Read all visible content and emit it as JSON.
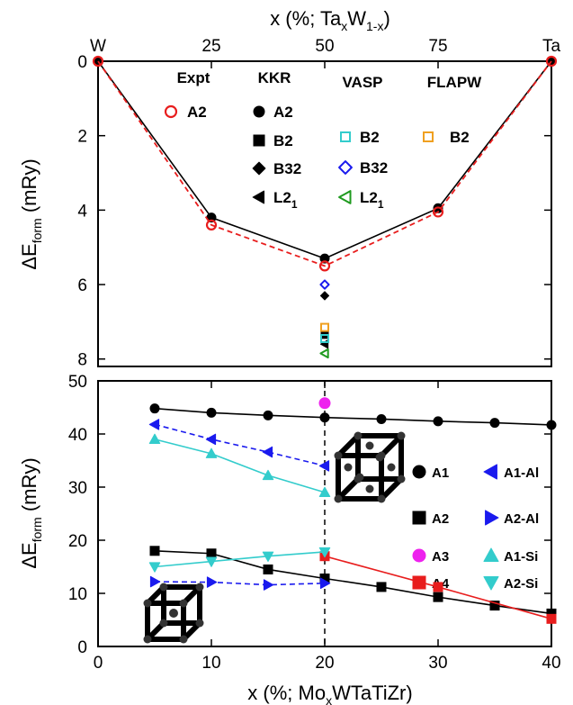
{
  "colors": {
    "black": "#000000",
    "red": "#e81d1d",
    "cyan": "#33cccc",
    "blue": "#1a1aee",
    "green": "#1f9a1f",
    "orange": "#f0a020",
    "magenta": "#ee22ee"
  },
  "chart_data": [
    {
      "type": "line",
      "top_xlabel": "x (%; Ta",
      "top_xlabel_sub": "x",
      "top_xlabel_mid": "W",
      "top_xlabel_sub2": "1-x",
      "top_xlabel_end": ")",
      "ylabel_prefix": "ΔE",
      "ylabel_sub": "form",
      "ylabel_suffix": " (mRy)",
      "xlim": [
        0,
        100
      ],
      "ylim": [
        0,
        8.2
      ],
      "y_inverted": true,
      "x_ticks": [
        {
          "value": 0,
          "label": "W"
        },
        {
          "value": 25,
          "label": "25"
        },
        {
          "value": 50,
          "label": "50"
        },
        {
          "value": 75,
          "label": "75"
        },
        {
          "value": 100,
          "label": "Ta"
        }
      ],
      "y_ticks": [
        0,
        2,
        4,
        6,
        8
      ],
      "legend_headers": [
        "Expt",
        "KKR",
        "VASP",
        "FLAPW"
      ],
      "series": [
        {
          "name": "A2",
          "method": "KKR",
          "marker": "circle",
          "filled": true,
          "color": "#000000",
          "line": "solid",
          "x": [
            0,
            25,
            50,
            75,
            100
          ],
          "y": [
            0,
            4.2,
            5.3,
            3.95,
            0
          ]
        },
        {
          "name": "A2",
          "method": "Expt",
          "marker": "circle",
          "filled": false,
          "color": "#e81d1d",
          "line": "dashed",
          "x": [
            0,
            25,
            50,
            75,
            100
          ],
          "y": [
            0,
            4.4,
            5.5,
            4.05,
            0
          ]
        },
        {
          "name": "B2",
          "method": "KKR",
          "marker": "square",
          "filled": true,
          "color": "#000000",
          "line": "none",
          "x": [
            50
          ],
          "y": [
            7.35
          ]
        },
        {
          "name": "B32",
          "method": "KKR",
          "marker": "diamond",
          "filled": true,
          "color": "#000000",
          "line": "none",
          "x": [
            50
          ],
          "y": [
            6.3
          ]
        },
        {
          "name": "L2",
          "name_sub": "1",
          "method": "KKR",
          "marker": "triangle-left",
          "filled": true,
          "color": "#000000",
          "line": "none",
          "x": [
            50
          ],
          "y": [
            7.6
          ]
        },
        {
          "name": "B2",
          "method": "VASP",
          "marker": "square",
          "filled": false,
          "color": "#33cccc",
          "line": "none",
          "x": [
            50
          ],
          "y": [
            7.45
          ]
        },
        {
          "name": "B32",
          "method": "VASP",
          "marker": "diamond",
          "filled": false,
          "color": "#1a1aee",
          "line": "none",
          "x": [
            50
          ],
          "y": [
            6.0
          ]
        },
        {
          "name": "L2",
          "name_sub": "1",
          "method": "VASP",
          "marker": "triangle-left",
          "filled": false,
          "color": "#1f9a1f",
          "line": "none",
          "x": [
            50
          ],
          "y": [
            7.85
          ]
        },
        {
          "name": "B2",
          "method": "FLAPW",
          "marker": "square",
          "filled": false,
          "color": "#f0a020",
          "line": "none",
          "x": [
            50
          ],
          "y": [
            7.15
          ]
        }
      ]
    },
    {
      "type": "line",
      "xlabel_prefix": "x (%; Mo",
      "xlabel_sub": "x",
      "xlabel_suffix": "WTaTiZr)",
      "ylabel_prefix": "ΔE",
      "ylabel_sub": "form",
      "ylabel_suffix": " (mRy)",
      "xlim": [
        0,
        40
      ],
      "ylim": [
        0,
        50
      ],
      "x_ticks": [
        0,
        10,
        20,
        30,
        40
      ],
      "y_ticks": [
        0,
        10,
        20,
        30,
        40,
        50
      ],
      "vline_x": 20,
      "series": [
        {
          "name": "A1",
          "marker": "circle",
          "filled": true,
          "color": "#000000",
          "line": "solid",
          "x": [
            5,
            10,
            15,
            20,
            25,
            30,
            35,
            40
          ],
          "y": [
            44.8,
            44.0,
            43.5,
            43.1,
            42.8,
            42.4,
            42.1,
            41.7
          ]
        },
        {
          "name": "A2",
          "marker": "square",
          "filled": true,
          "color": "#000000",
          "line": "solid",
          "x": [
            5,
            10,
            15,
            20,
            25,
            30,
            35,
            40
          ],
          "y": [
            18.0,
            17.5,
            14.5,
            12.8,
            11.2,
            9.3,
            7.7,
            6.2
          ]
        },
        {
          "name": "A3",
          "marker": "circle",
          "filled": true,
          "color": "#ee22ee",
          "line": "none",
          "x": [
            20
          ],
          "y": [
            45.8
          ]
        },
        {
          "name": "A4",
          "marker": "square",
          "filled": true,
          "color": "#e81d1d",
          "line": "solid",
          "x": [
            20,
            30,
            40
          ],
          "y": [
            17.0,
            11.2,
            5.2
          ]
        },
        {
          "name": "A1-Al",
          "marker": "triangle-left",
          "filled": true,
          "color": "#1a1aee",
          "line": "dashed",
          "x": [
            5,
            10,
            15,
            20
          ],
          "y": [
            41.8,
            39.0,
            36.6,
            34.0
          ]
        },
        {
          "name": "A2-Al",
          "marker": "triangle-right",
          "filled": true,
          "color": "#1a1aee",
          "line": "dashed",
          "x": [
            5,
            10,
            15,
            20
          ],
          "y": [
            12.2,
            12.1,
            11.6,
            11.9
          ]
        },
        {
          "name": "A1-Si",
          "marker": "triangle-up",
          "filled": true,
          "color": "#33cccc",
          "line": "solid",
          "x": [
            5,
            10,
            15,
            20
          ],
          "y": [
            39.0,
            36.3,
            32.2,
            29.0
          ]
        },
        {
          "name": "A2-Si",
          "marker": "triangle-down",
          "filled": true,
          "color": "#33cccc",
          "line": "solid",
          "x": [
            5,
            10,
            15,
            20
          ],
          "y": [
            15.0,
            16.0,
            17.0,
            17.8
          ]
        }
      ]
    }
  ]
}
